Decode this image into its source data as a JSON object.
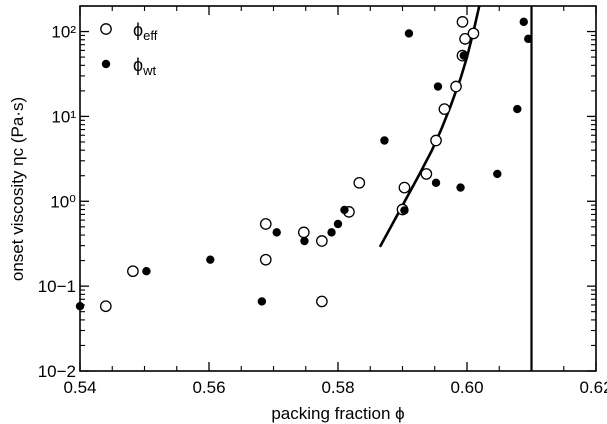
{
  "chart_data": {
    "type": "scatter",
    "title": "",
    "xlabel": "packing fraction ϕ",
    "ylabel": "onset viscosity ηc (Pa·s)",
    "x_scale": "linear",
    "y_scale": "log",
    "xlim": [
      0.54,
      0.62
    ],
    "ylim": [
      0.01,
      200
    ],
    "x_ticks": [
      0.54,
      0.56,
      0.58,
      0.6,
      0.62
    ],
    "x_tick_labels": [
      "0.54",
      "0.56",
      "0.58",
      "0.60",
      "0.62"
    ],
    "y_ticks": [
      0.01,
      0.1,
      1,
      10,
      100
    ],
    "y_tick_labels": [
      "10−2",
      "10−1",
      "10⁰",
      "10¹",
      "10²"
    ],
    "grid": false,
    "legend_position": "top-left",
    "series": [
      {
        "name": "ϕeff",
        "name_base": "ϕ",
        "name_sub": "eff",
        "marker": "open-circle",
        "points": [
          [
            0.544,
            0.058
          ],
          [
            0.5482,
            0.15
          ],
          [
            0.5688,
            0.54
          ],
          [
            0.5688,
            0.205
          ],
          [
            0.5747,
            0.43
          ],
          [
            0.5775,
            0.34
          ],
          [
            0.5775,
            0.066
          ],
          [
            0.5817,
            0.75
          ],
          [
            0.5833,
            1.65
          ],
          [
            0.59,
            0.8
          ],
          [
            0.5903,
            1.45
          ],
          [
            0.5937,
            2.1
          ],
          [
            0.5952,
            5.2
          ],
          [
            0.5965,
            12.2
          ],
          [
            0.5983,
            22.5
          ],
          [
            0.5993,
            52.0
          ],
          [
            0.5997,
            82.0
          ],
          [
            0.5993,
            130.0
          ],
          [
            0.601,
            95.0
          ]
        ]
      },
      {
        "name": "ϕwt",
        "name_base": "ϕ",
        "name_sub": "wt",
        "marker": "filled-circle",
        "points": [
          [
            0.54,
            0.058
          ],
          [
            0.5503,
            0.15
          ],
          [
            0.5602,
            0.205
          ],
          [
            0.5682,
            0.066
          ],
          [
            0.5705,
            0.43
          ],
          [
            0.5748,
            0.34
          ],
          [
            0.579,
            0.43
          ],
          [
            0.58,
            0.54
          ],
          [
            0.581,
            0.79
          ],
          [
            0.5872,
            5.2
          ],
          [
            0.5903,
            0.78
          ],
          [
            0.591,
            95.0
          ],
          [
            0.5952,
            1.65
          ],
          [
            0.5955,
            22.5
          ],
          [
            0.599,
            1.45
          ],
          [
            0.5995,
            52.0
          ],
          [
            0.6047,
            2.1
          ],
          [
            0.6078,
            12.2
          ],
          [
            0.6088,
            130.0
          ],
          [
            0.6095,
            82.0
          ]
        ]
      }
    ],
    "fit_curve": {
      "style": "solid",
      "points": [
        [
          0.5865,
          0.29
        ],
        [
          0.5885,
          0.55
        ],
        [
          0.5905,
          1.05
        ],
        [
          0.5925,
          2.0
        ],
        [
          0.5945,
          3.9
        ],
        [
          0.596,
          7.0
        ],
        [
          0.5975,
          13.5
        ],
        [
          0.599,
          28.0
        ],
        [
          0.6,
          50.0
        ],
        [
          0.601,
          100.0
        ],
        [
          0.6019,
          200.0
        ]
      ]
    },
    "vertical_line": {
      "x": 0.61,
      "style": "solid"
    }
  }
}
